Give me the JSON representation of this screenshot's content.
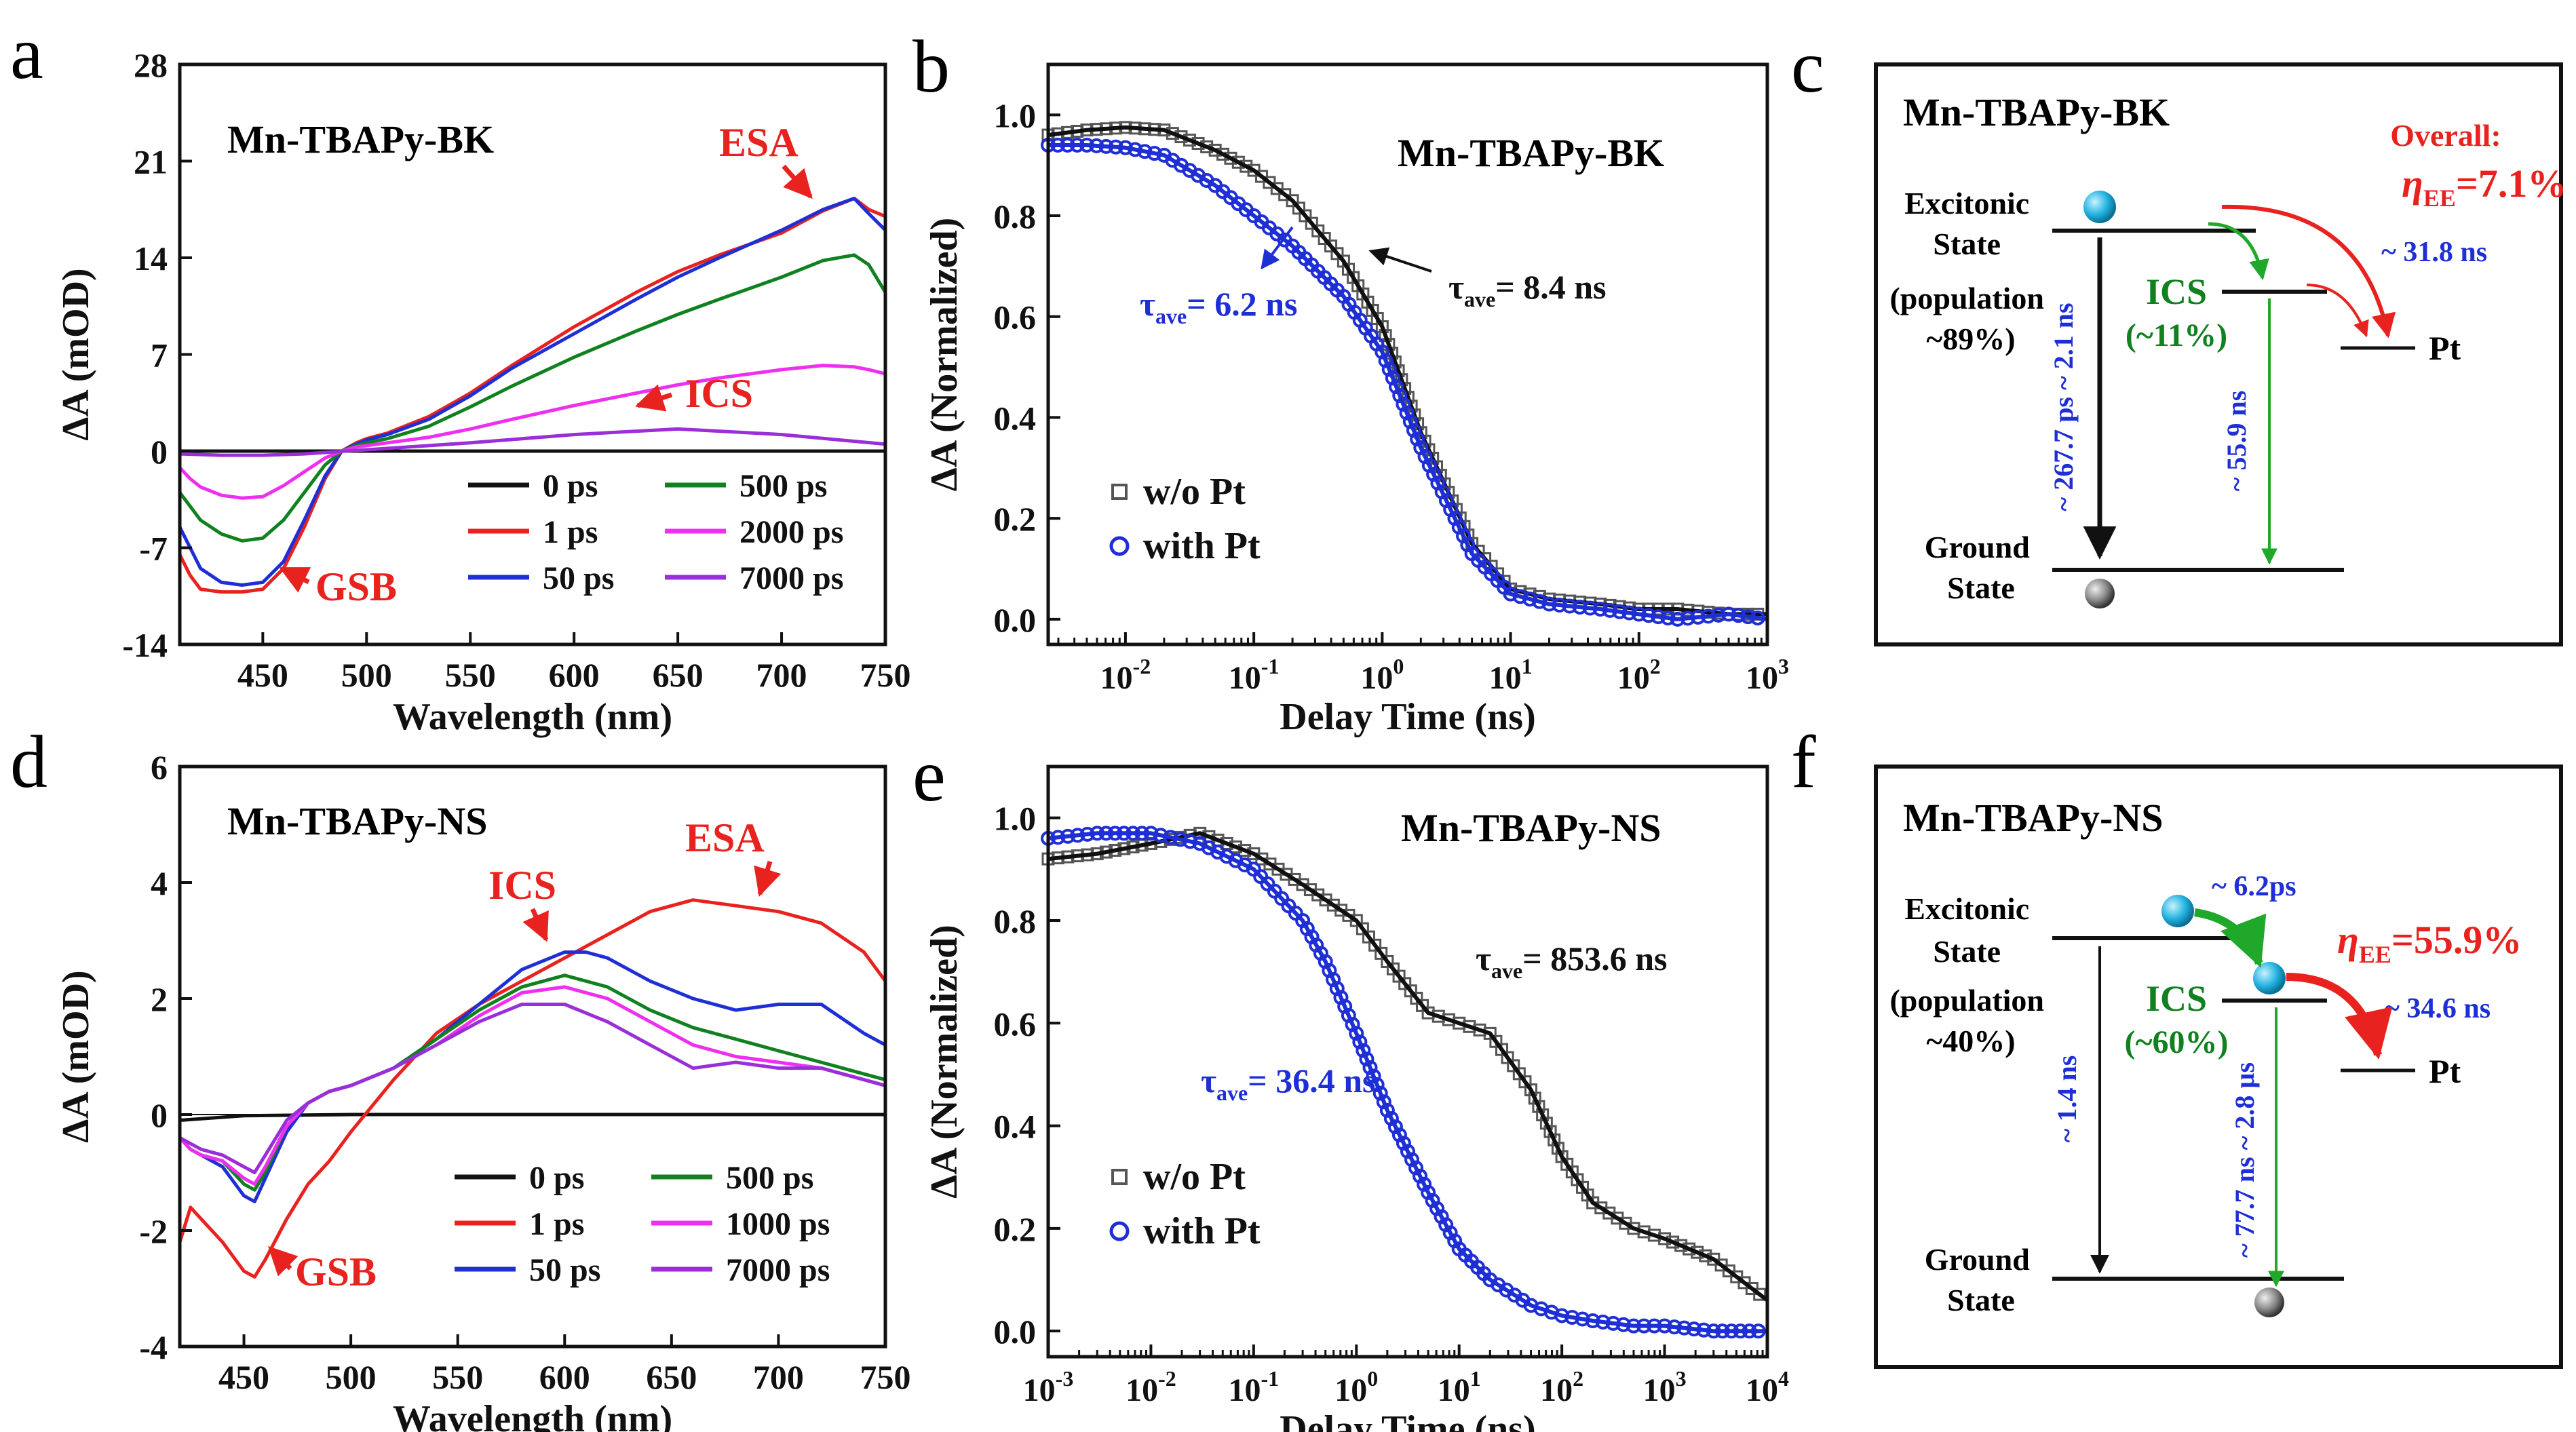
{
  "colors": {
    "black": "#111111",
    "red": "#e8231f",
    "green": "#11801f",
    "blue": "#1f2fd6",
    "magenta": "#ee2ff0",
    "purple": "#9a2fd8",
    "gray": "#555555",
    "arrow_red": "#e8231f",
    "arrow_green": "#1fa829",
    "sphere_cyan": "#24b3e0",
    "sphere_gray": "#777777"
  },
  "charts": [
    {
      "panel_letter": "a",
      "type": "line",
      "title": "Mn-TBAPy-BK",
      "xlabel": "Wavelength (nm)",
      "ylabel": "ΔA (mOD)",
      "xlim": [
        410,
        750
      ],
      "ylim": [
        -14,
        28
      ],
      "xticks": [
        "450",
        "500",
        "550",
        "600",
        "650",
        "700",
        "750"
      ],
      "yticks": [
        "-14",
        "-7",
        "0",
        "7",
        "14",
        "21",
        "28"
      ],
      "annotations": [
        "ESA",
        "ICS",
        "GSB"
      ],
      "legend": [
        {
          "label": "0 ps"
        },
        {
          "label": "1 ps"
        },
        {
          "label": "50 ps"
        },
        {
          "label": "500 ps"
        },
        {
          "label": "2000 ps"
        },
        {
          "label": "7000 ps"
        }
      ],
      "series": [
        {
          "name": "0 ps",
          "x": [
            410,
            450,
            480,
            490,
            500,
            550,
            600,
            650,
            700,
            750
          ],
          "y": [
            0,
            0,
            0,
            0,
            0,
            0,
            0,
            0,
            0,
            0
          ]
        },
        {
          "name": "1 ps",
          "x": [
            410,
            415,
            420,
            430,
            440,
            450,
            460,
            470,
            480,
            488,
            495,
            500,
            510,
            530,
            550,
            570,
            600,
            630,
            650,
            670,
            700,
            720,
            735,
            742,
            750
          ],
          "y": [
            -7.5,
            -9,
            -10,
            -10.2,
            -10.2,
            -10,
            -8.5,
            -5.5,
            -2,
            0,
            0.6,
            0.9,
            1.3,
            2.5,
            4.2,
            6.2,
            9,
            11.5,
            13,
            14.2,
            15.8,
            17.4,
            18.3,
            17.5,
            17
          ]
        },
        {
          "name": "50 ps",
          "x": [
            410,
            415,
            420,
            430,
            440,
            450,
            460,
            470,
            480,
            488,
            495,
            500,
            510,
            530,
            550,
            570,
            600,
            630,
            650,
            670,
            700,
            720,
            735,
            742,
            750
          ],
          "y": [
            -5.5,
            -7,
            -8.5,
            -9.5,
            -9.7,
            -9.5,
            -8,
            -5,
            -1.8,
            0,
            0.5,
            0.8,
            1.2,
            2.3,
            4,
            6,
            8.5,
            11,
            12.6,
            14,
            16,
            17.5,
            18.3,
            17.2,
            16
          ]
        },
        {
          "name": "500 ps",
          "x": [
            410,
            415,
            420,
            430,
            440,
            450,
            460,
            470,
            480,
            488,
            495,
            500,
            510,
            530,
            550,
            570,
            600,
            630,
            650,
            670,
            700,
            720,
            735,
            742,
            750
          ],
          "y": [
            -3,
            -4,
            -5,
            -6,
            -6.5,
            -6.3,
            -5,
            -3,
            -1,
            0,
            0.4,
            0.6,
            0.9,
            1.8,
            3.2,
            4.7,
            6.8,
            8.7,
            9.9,
            11,
            12.6,
            13.8,
            14.2,
            13.5,
            11.5
          ]
        },
        {
          "name": "2000 ps",
          "x": [
            410,
            415,
            420,
            430,
            440,
            450,
            460,
            470,
            480,
            488,
            495,
            500,
            510,
            530,
            550,
            570,
            600,
            630,
            650,
            670,
            700,
            720,
            735,
            742,
            750
          ],
          "y": [
            -1.2,
            -2,
            -2.6,
            -3.2,
            -3.4,
            -3.3,
            -2.5,
            -1.5,
            -0.5,
            0,
            0.3,
            0.4,
            0.6,
            1,
            1.6,
            2.3,
            3.3,
            4.2,
            4.8,
            5.3,
            5.9,
            6.2,
            6.1,
            5.9,
            5.6
          ]
        },
        {
          "name": "7000 ps",
          "x": [
            410,
            430,
            450,
            470,
            490,
            500,
            550,
            600,
            650,
            700,
            750
          ],
          "y": [
            -0.2,
            -0.3,
            -0.3,
            -0.2,
            0,
            0.1,
            0.6,
            1.2,
            1.6,
            1.2,
            0.5
          ]
        }
      ]
    },
    {
      "panel_letter": "b",
      "type": "line",
      "title": "Mn-TBAPy-BK",
      "xlabel": "Delay Time (ns)",
      "ylabel": "ΔA (Normalized)",
      "xscale": "log",
      "xlim": [
        0.0025,
        1000
      ],
      "ylim": [
        -0.05,
        1.1
      ],
      "xticks": [
        {
          "base": "10",
          "exp": "-2"
        },
        {
          "base": "10",
          "exp": "-1"
        },
        {
          "base": "10",
          "exp": "0"
        },
        {
          "base": "10",
          "exp": "1"
        },
        {
          "base": "10",
          "exp": "2"
        },
        {
          "base": "10",
          "exp": "3"
        }
      ],
      "yticks": [
        "0.0",
        "0.2",
        "0.4",
        "0.6",
        "0.8",
        "1.0"
      ],
      "annotations": [
        {
          "tau": "τ",
          "sub": "ave",
          "rest": "= 6.2 ns"
        },
        {
          "tau": "τ",
          "sub": "ave",
          "rest": "= 8.4 ns"
        }
      ],
      "legend": [
        {
          "label": "w/o Pt"
        },
        {
          "label": "with Pt"
        }
      ],
      "series": [
        {
          "name": "w/o Pt",
          "marker": "square",
          "x": [
            0.0025,
            0.005,
            0.01,
            0.02,
            0.05,
            0.1,
            0.2,
            0.5,
            1,
            2,
            5,
            10,
            20,
            50,
            100,
            200,
            500,
            1000
          ],
          "y": [
            0.96,
            0.97,
            0.975,
            0.97,
            0.93,
            0.89,
            0.83,
            0.71,
            0.58,
            0.37,
            0.15,
            0.06,
            0.04,
            0.03,
            0.02,
            0.02,
            0.01,
            0.01
          ]
        },
        {
          "name": "with Pt",
          "marker": "circle",
          "x": [
            0.0025,
            0.005,
            0.01,
            0.02,
            0.05,
            0.1,
            0.2,
            0.5,
            1,
            2,
            5,
            10,
            20,
            50,
            100,
            200,
            500,
            1000
          ],
          "y": [
            0.94,
            0.94,
            0.935,
            0.92,
            0.86,
            0.8,
            0.74,
            0.64,
            0.53,
            0.34,
            0.13,
            0.05,
            0.03,
            0.02,
            0.01,
            0.0,
            0.01,
            0.0
          ]
        }
      ]
    },
    {
      "panel_letter": "d",
      "type": "line",
      "title": "Mn-TBAPy-NS",
      "xlabel": "Wavelength (nm)",
      "ylabel": "ΔA (mOD)",
      "xlim": [
        420,
        750
      ],
      "ylim": [
        -4,
        6
      ],
      "xticks": [
        "450",
        "500",
        "550",
        "600",
        "650",
        "700",
        "750"
      ],
      "yticks": [
        "-4",
        "-2",
        "0",
        "2",
        "4",
        "6"
      ],
      "annotations": [
        "ICS",
        "ESA",
        "GSB"
      ],
      "legend": [
        {
          "label": "0 ps"
        },
        {
          "label": "1 ps"
        },
        {
          "label": "50 ps"
        },
        {
          "label": "500 ps"
        },
        {
          "label": "1000 ps"
        },
        {
          "label": "7000 ps"
        }
      ],
      "series": [
        {
          "name": "0 ps",
          "x": [
            420,
            450,
            500,
            550,
            600,
            650,
            700,
            750
          ],
          "y": [
            -0.1,
            -0.02,
            0,
            0,
            0,
            0,
            0,
            0
          ]
        },
        {
          "name": "1 ps",
          "x": [
            420,
            425,
            430,
            440,
            450,
            455,
            460,
            470,
            480,
            490,
            500,
            520,
            540,
            560,
            580,
            600,
            620,
            640,
            660,
            680,
            700,
            720,
            740,
            750
          ],
          "y": [
            -2.2,
            -1.6,
            -1.8,
            -2.2,
            -2.7,
            -2.8,
            -2.5,
            -1.8,
            -1.2,
            -0.8,
            -0.3,
            0.6,
            1.4,
            1.9,
            2.3,
            2.7,
            3.1,
            3.5,
            3.7,
            3.6,
            3.5,
            3.3,
            2.8,
            2.3
          ]
        },
        {
          "name": "50 ps",
          "x": [
            420,
            425,
            430,
            440,
            450,
            455,
            460,
            470,
            480,
            490,
            500,
            520,
            540,
            560,
            580,
            600,
            610,
            620,
            640,
            660,
            680,
            700,
            720,
            740,
            750
          ],
          "y": [
            -0.4,
            -0.6,
            -0.7,
            -0.9,
            -1.4,
            -1.5,
            -1.1,
            -0.3,
            0.2,
            0.4,
            0.5,
            0.8,
            1.3,
            1.9,
            2.5,
            2.8,
            2.8,
            2.7,
            2.3,
            2.0,
            1.8,
            1.9,
            1.9,
            1.4,
            1.2
          ]
        },
        {
          "name": "500 ps",
          "x": [
            420,
            425,
            430,
            440,
            450,
            455,
            460,
            470,
            480,
            490,
            500,
            520,
            540,
            560,
            580,
            600,
            620,
            640,
            660,
            680,
            700,
            720,
            740,
            750
          ],
          "y": [
            -0.4,
            -0.6,
            -0.7,
            -0.8,
            -1.2,
            -1.3,
            -1.0,
            -0.2,
            0.2,
            0.4,
            0.5,
            0.8,
            1.3,
            1.8,
            2.2,
            2.4,
            2.2,
            1.8,
            1.5,
            1.3,
            1.1,
            0.9,
            0.7,
            0.6
          ]
        },
        {
          "name": "1000 ps",
          "x": [
            420,
            425,
            430,
            440,
            450,
            455,
            460,
            470,
            480,
            490,
            500,
            520,
            540,
            560,
            580,
            600,
            620,
            640,
            660,
            680,
            700,
            720,
            740,
            750
          ],
          "y": [
            -0.4,
            -0.6,
            -0.7,
            -0.8,
            -1.1,
            -1.2,
            -0.9,
            -0.2,
            0.2,
            0.4,
            0.5,
            0.8,
            1.2,
            1.7,
            2.1,
            2.2,
            2.0,
            1.6,
            1.2,
            1.0,
            0.9,
            0.8,
            0.6,
            0.5
          ]
        },
        {
          "name": "7000 ps",
          "x": [
            420,
            425,
            430,
            440,
            450,
            455,
            460,
            470,
            480,
            490,
            500,
            520,
            540,
            560,
            580,
            600,
            620,
            640,
            660,
            680,
            700,
            720,
            740,
            750
          ],
          "y": [
            -0.4,
            -0.5,
            -0.6,
            -0.7,
            -0.9,
            -1.0,
            -0.7,
            -0.1,
            0.2,
            0.4,
            0.5,
            0.8,
            1.2,
            1.6,
            1.9,
            1.9,
            1.6,
            1.2,
            0.8,
            0.9,
            0.8,
            0.8,
            0.6,
            0.5
          ]
        }
      ]
    },
    {
      "panel_letter": "e",
      "type": "line",
      "title": "Mn-TBAPy-NS",
      "xlabel": "Delay Time (ns)",
      "ylabel": "ΔA (Normalized)",
      "xscale": "log",
      "xlim": [
        0.001,
        10000
      ],
      "ylim": [
        -0.05,
        1.1
      ],
      "xticks": [
        {
          "base": "10",
          "exp": "-3"
        },
        {
          "base": "10",
          "exp": "-2"
        },
        {
          "base": "10",
          "exp": "-1"
        },
        {
          "base": "10",
          "exp": "0"
        },
        {
          "base": "10",
          "exp": "1"
        },
        {
          "base": "10",
          "exp": "2"
        },
        {
          "base": "10",
          "exp": "3"
        },
        {
          "base": "10",
          "exp": "4"
        }
      ],
      "yticks": [
        "0.0",
        "0.2",
        "0.4",
        "0.6",
        "0.8",
        "1.0"
      ],
      "annotations": [
        {
          "tau": "τ",
          "sub": "ave",
          "rest": "= 853.6 ns"
        },
        {
          "tau": "τ",
          "sub": "ave",
          "rest": "= 36.4 ns"
        }
      ],
      "legend": [
        {
          "label": "w/o Pt"
        },
        {
          "label": "with Pt"
        }
      ],
      "series": [
        {
          "name": "w/o Pt",
          "marker": "square",
          "x": [
            0.001,
            0.003,
            0.01,
            0.03,
            0.1,
            0.3,
            1,
            2,
            5,
            10,
            20,
            50,
            100,
            200,
            500,
            1000,
            3000,
            10000
          ],
          "y": [
            0.92,
            0.93,
            0.95,
            0.97,
            0.93,
            0.87,
            0.8,
            0.72,
            0.62,
            0.6,
            0.58,
            0.47,
            0.34,
            0.25,
            0.2,
            0.18,
            0.14,
            0.06
          ]
        },
        {
          "name": "with Pt",
          "marker": "circle",
          "x": [
            0.001,
            0.003,
            0.01,
            0.03,
            0.1,
            0.3,
            0.5,
            1,
            2,
            5,
            10,
            20,
            50,
            100,
            200,
            500,
            1000,
            3000,
            10000
          ],
          "y": [
            0.96,
            0.97,
            0.97,
            0.95,
            0.9,
            0.8,
            0.72,
            0.58,
            0.43,
            0.27,
            0.16,
            0.1,
            0.05,
            0.03,
            0.02,
            0.01,
            0.01,
            0.0,
            0.0
          ]
        }
      ]
    }
  ],
  "diagrams": [
    {
      "panel_letter": "c",
      "title": "Mn-TBAPy-BK",
      "excitonic_state": [
        "Excitonic",
        "State",
        "(population",
        "~89%)"
      ],
      "ground_state": [
        "Ground",
        "State"
      ],
      "overall_label": "Overall:",
      "eta": {
        "symbol": "η",
        "sub": "EE",
        "rest": "=7.1%"
      },
      "ics_label": "ICS",
      "ics_pct": "(~11%)",
      "pt_label": "Pt",
      "t_ics_pt": "~ 31.8 ns",
      "t_left": "~ 267.7 ps ~ 2.1 ns",
      "t_ics_ground": "~ 55.9 ns"
    },
    {
      "panel_letter": "f",
      "title": "Mn-TBAPy-NS",
      "excitonic_state": [
        "Excitonic",
        "State",
        "(population",
        "~40%)"
      ],
      "ground_state": [
        "Ground",
        "State"
      ],
      "eta": {
        "symbol": "η",
        "sub": "EE",
        "rest": "=55.9%"
      },
      "ics_label": "ICS",
      "ics_pct": "(~60%)",
      "pt_label": "Pt",
      "t_exc_ics": "~ 6.2ps",
      "t_ics_pt": "~ 34.6 ns",
      "t_left": "~ 1.4 ns",
      "t_ics_ground": "~ 77.7 ns ~ 2.8 µs"
    }
  ]
}
